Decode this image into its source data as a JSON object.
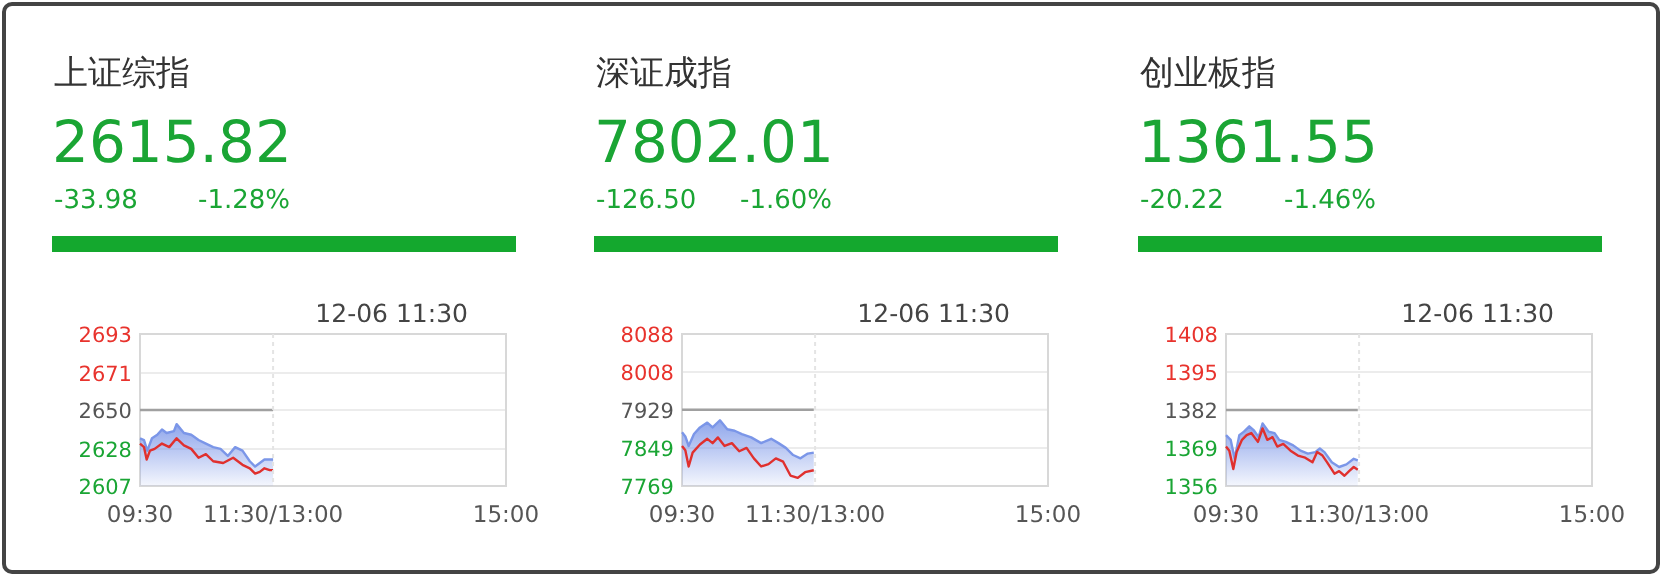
{
  "chart_data": [
    {
      "type": "line",
      "title": "上证综指",
      "subtitle": "2615.82",
      "annotations": [
        "-33.98",
        "-1.28%",
        "12-06 11:30"
      ],
      "xlim": [
        9.5,
        15
      ],
      "xticks": [
        {
          "value": 9.5,
          "label": "09:30"
        },
        {
          "value": 11.5,
          "label": "11:30/13:00"
        },
        {
          "value": 15,
          "label": "15:00"
        }
      ],
      "ylim": [
        2607,
        2693
      ],
      "yticks": [
        2607,
        2628,
        2650,
        2671,
        2693
      ],
      "grid": "y",
      "marker": "none",
      "ref_lines": [
        {
          "axis": "y",
          "value": 2650,
          "color": "#a0a0a0"
        },
        {
          "axis": "x",
          "value": 11.5,
          "color": "#e4e4e4",
          "line_style": "dotted"
        }
      ],
      "series": [
        {
          "type": "area",
          "color": "#7b96e8",
          "x": [
            9.5,
            9.56,
            9.61,
            9.68,
            9.76,
            9.83,
            9.9,
            10.01,
            10.05,
            10.16,
            10.27,
            10.38,
            10.49,
            10.6,
            10.71,
            10.82,
            10.93,
            11.04,
            11.15,
            11.23,
            11.3,
            11.37,
            11.45,
            11.5
          ],
          "values": [
            2634,
            2633,
            2627,
            2634,
            2636,
            2639,
            2637,
            2638,
            2642,
            2637,
            2636,
            2633,
            2631,
            2629,
            2628,
            2624,
            2629,
            2627,
            2621,
            2618,
            2620,
            2622,
            2622,
            2622
          ]
        },
        {
          "type": "line",
          "color": "#e0302e",
          "x": [
            9.5,
            9.56,
            9.6,
            9.65,
            9.72,
            9.83,
            9.94,
            10.05,
            10.16,
            10.27,
            10.38,
            10.49,
            10.6,
            10.75,
            10.9,
            11.04,
            11.15,
            11.23,
            11.3,
            11.37,
            11.45,
            11.5
          ],
          "values": [
            2631,
            2629,
            2622,
            2627,
            2628,
            2631,
            2629,
            2634,
            2630,
            2628,
            2623,
            2625,
            2621,
            2620,
            2623,
            2619,
            2617,
            2614,
            2615,
            2617,
            2616,
            2616
          ]
        }
      ]
    },
    {
      "type": "line",
      "title": "深证成指",
      "subtitle": "7802.01",
      "annotations": [
        "-126.50",
        "-1.60%",
        "12-06 11:30"
      ],
      "xlim": [
        9.5,
        15
      ],
      "xticks": [
        {
          "value": 9.5,
          "label": "09:30"
        },
        {
          "value": 11.5,
          "label": "11:30/13:00"
        },
        {
          "value": 15,
          "label": "15:00"
        }
      ],
      "ylim": [
        7769,
        8088
      ],
      "yticks": [
        7769,
        7849,
        7929,
        8008,
        8088
      ],
      "grid": "y",
      "marker": "none",
      "ref_lines": [
        {
          "axis": "y",
          "value": 7929,
          "color": "#a0a0a0"
        },
        {
          "axis": "x",
          "value": 11.5,
          "color": "#e4e4e4",
          "line_style": "dotted"
        }
      ],
      "series": [
        {
          "type": "area",
          "color": "#7b96e8",
          "x": [
            9.5,
            9.55,
            9.6,
            9.68,
            9.77,
            9.88,
            9.96,
            10.07,
            10.18,
            10.29,
            10.4,
            10.54,
            10.69,
            10.84,
            10.95,
            11.06,
            11.17,
            11.28,
            11.39,
            11.48
          ],
          "values": [
            7882,
            7873,
            7853,
            7878,
            7892,
            7902,
            7892,
            7907,
            7888,
            7885,
            7878,
            7871,
            7859,
            7868,
            7859,
            7849,
            7834,
            7827,
            7837,
            7839
          ]
        },
        {
          "type": "line",
          "color": "#e0302e",
          "x": [
            9.5,
            9.55,
            9.6,
            9.66,
            9.77,
            9.88,
            9.96,
            10.04,
            10.14,
            10.25,
            10.36,
            10.47,
            10.58,
            10.69,
            10.8,
            10.91,
            11.02,
            11.13,
            11.24,
            11.35,
            11.48
          ],
          "values": [
            7853,
            7844,
            7810,
            7839,
            7856,
            7868,
            7859,
            7871,
            7853,
            7859,
            7842,
            7849,
            7827,
            7810,
            7815,
            7827,
            7820,
            7791,
            7786,
            7798,
            7802
          ]
        }
      ]
    },
    {
      "type": "line",
      "title": "创业板指",
      "subtitle": "1361.55",
      "annotations": [
        "-20.22",
        "-1.46%",
        "12-06 11:30"
      ],
      "xlim": [
        9.5,
        15
      ],
      "xticks": [
        {
          "value": 9.5,
          "label": "09:30"
        },
        {
          "value": 11.5,
          "label": "11:30/13:00"
        },
        {
          "value": 15,
          "label": "15:00"
        }
      ],
      "ylim": [
        1356,
        1408
      ],
      "yticks": [
        1356,
        1369,
        1382,
        1395,
        1408
      ],
      "grid": "y",
      "marker": "none",
      "ref_lines": [
        {
          "axis": "y",
          "value": 1382,
          "color": "#a0a0a0"
        },
        {
          "axis": "x",
          "value": 11.5,
          "color": "#e4e4e4",
          "line_style": "dotted"
        }
      ],
      "series": [
        {
          "type": "area",
          "color": "#7b96e8",
          "x": [
            9.5,
            9.57,
            9.63,
            9.7,
            9.77,
            9.85,
            9.92,
            9.99,
            10.05,
            10.14,
            10.23,
            10.3,
            10.4,
            10.51,
            10.62,
            10.73,
            10.84,
            10.91,
            10.98,
            11.09,
            11.2,
            11.31,
            11.42,
            11.48
          ],
          "values": [
            1373.4,
            1371.8,
            1365.3,
            1373.4,
            1374.6,
            1376.4,
            1375,
            1372.7,
            1377.4,
            1374.6,
            1374.1,
            1371.8,
            1371.1,
            1369.9,
            1368.1,
            1367.1,
            1367.6,
            1368.8,
            1367.6,
            1364.1,
            1362.5,
            1363.4,
            1365.3,
            1364.8
          ]
        },
        {
          "type": "line",
          "color": "#e0302e",
          "x": [
            9.5,
            9.55,
            9.61,
            9.66,
            9.74,
            9.81,
            9.88,
            9.98,
            10.05,
            10.12,
            10.2,
            10.27,
            10.36,
            10.47,
            10.58,
            10.69,
            10.8,
            10.87,
            10.95,
            11.02,
            11.13,
            11.2,
            11.28,
            11.35,
            11.42,
            11.48
          ],
          "values": [
            1369.5,
            1368.1,
            1361.8,
            1367.6,
            1371.8,
            1373.4,
            1374.1,
            1371.1,
            1375.7,
            1371.8,
            1372.7,
            1369.5,
            1370.4,
            1368.1,
            1366.4,
            1365.7,
            1364.1,
            1367.6,
            1366.4,
            1364.1,
            1360.2,
            1361.1,
            1359.5,
            1361.1,
            1362.5,
            1361.6
          ]
        }
      ]
    }
  ]
}
